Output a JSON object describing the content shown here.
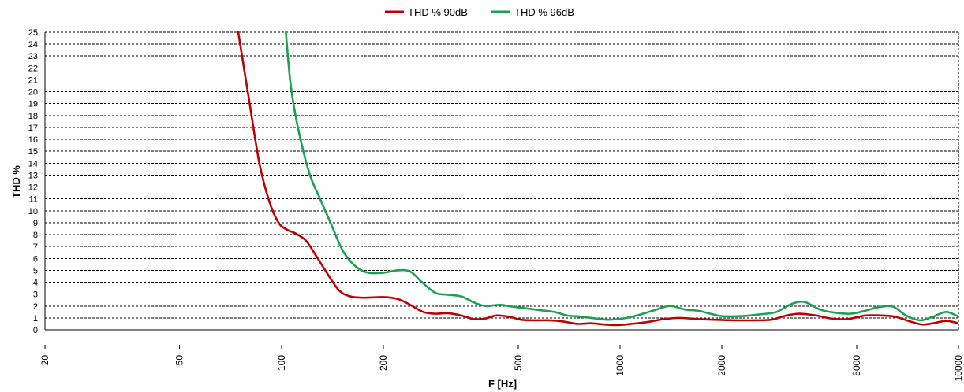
{
  "chart_data": {
    "type": "line",
    "xlabel": "F [Hz]",
    "ylabel": "THD %",
    "x_scale": "log",
    "xlim": [
      20,
      10000
    ],
    "ylim": [
      0,
      25
    ],
    "x_ticks": [
      20,
      50,
      100,
      200,
      500,
      1000,
      2000,
      5000,
      10000
    ],
    "y_ticks": [
      0,
      1,
      2,
      3,
      4,
      5,
      6,
      7,
      8,
      9,
      10,
      11,
      12,
      13,
      14,
      15,
      16,
      17,
      18,
      19,
      20,
      21,
      22,
      23,
      24,
      25
    ],
    "grid": "horizontal-dashed",
    "legend_position": "top-center",
    "series": [
      {
        "name": "THD % 90dB",
        "color": "#c00000",
        "points": [
          [
            74.5,
            25
          ],
          [
            80,
            19.5
          ],
          [
            86,
            14
          ],
          [
            92,
            10.8
          ],
          [
            98,
            9.0
          ],
          [
            104,
            8.4
          ],
          [
            110,
            8.1
          ],
          [
            118,
            7.5
          ],
          [
            126,
            6.3
          ],
          [
            136,
            4.8
          ],
          [
            148,
            3.3
          ],
          [
            160,
            2.8
          ],
          [
            175,
            2.7
          ],
          [
            200,
            2.75
          ],
          [
            220,
            2.6
          ],
          [
            240,
            2.1
          ],
          [
            262,
            1.5
          ],
          [
            285,
            1.35
          ],
          [
            310,
            1.4
          ],
          [
            340,
            1.2
          ],
          [
            370,
            0.9
          ],
          [
            400,
            0.95
          ],
          [
            430,
            1.2
          ],
          [
            470,
            1.1
          ],
          [
            510,
            0.85
          ],
          [
            560,
            0.8
          ],
          [
            620,
            0.8
          ],
          [
            680,
            0.7
          ],
          [
            750,
            0.5
          ],
          [
            820,
            0.55
          ],
          [
            900,
            0.45
          ],
          [
            980,
            0.4
          ],
          [
            1080,
            0.5
          ],
          [
            1200,
            0.65
          ],
          [
            1350,
            0.9
          ],
          [
            1500,
            1.0
          ],
          [
            1700,
            0.9
          ],
          [
            1900,
            0.85
          ],
          [
            2200,
            0.8
          ],
          [
            2500,
            0.8
          ],
          [
            2800,
            0.85
          ],
          [
            3100,
            1.2
          ],
          [
            3400,
            1.35
          ],
          [
            3800,
            1.2
          ],
          [
            4200,
            0.95
          ],
          [
            4700,
            0.9
          ],
          [
            5300,
            1.2
          ],
          [
            5900,
            1.2
          ],
          [
            6500,
            1.1
          ],
          [
            7200,
            0.7
          ],
          [
            7800,
            0.45
          ],
          [
            8400,
            0.55
          ],
          [
            9200,
            0.75
          ],
          [
            10000,
            0.55
          ]
        ]
      },
      {
        "name": "THD % 96dB",
        "color": "#1aa152",
        "points": [
          [
            103,
            25
          ],
          [
            106,
            21
          ],
          [
            110,
            18
          ],
          [
            116,
            15
          ],
          [
            122,
            12.8
          ],
          [
            130,
            11
          ],
          [
            140,
            8.9
          ],
          [
            152,
            6.6
          ],
          [
            166,
            5.3
          ],
          [
            180,
            4.8
          ],
          [
            200,
            4.8
          ],
          [
            220,
            5.0
          ],
          [
            240,
            4.9
          ],
          [
            260,
            4.0
          ],
          [
            285,
            3.1
          ],
          [
            310,
            2.95
          ],
          [
            340,
            2.8
          ],
          [
            370,
            2.3
          ],
          [
            400,
            2.0
          ],
          [
            440,
            2.1
          ],
          [
            480,
            1.95
          ],
          [
            530,
            1.8
          ],
          [
            580,
            1.65
          ],
          [
            640,
            1.5
          ],
          [
            700,
            1.2
          ],
          [
            770,
            1.1
          ],
          [
            850,
            0.95
          ],
          [
            930,
            0.85
          ],
          [
            1020,
            0.95
          ],
          [
            1120,
            1.2
          ],
          [
            1250,
            1.6
          ],
          [
            1400,
            2.0
          ],
          [
            1560,
            1.7
          ],
          [
            1700,
            1.6
          ],
          [
            1850,
            1.35
          ],
          [
            2000,
            1.15
          ],
          [
            2300,
            1.15
          ],
          [
            2600,
            1.3
          ],
          [
            2900,
            1.5
          ],
          [
            3200,
            2.15
          ],
          [
            3500,
            2.35
          ],
          [
            3900,
            1.7
          ],
          [
            4300,
            1.45
          ],
          [
            4800,
            1.35
          ],
          [
            5300,
            1.6
          ],
          [
            5800,
            1.9
          ],
          [
            6400,
            1.95
          ],
          [
            7000,
            1.2
          ],
          [
            7700,
            0.8
          ],
          [
            8400,
            1.1
          ],
          [
            9200,
            1.5
          ],
          [
            10000,
            1.1
          ]
        ]
      }
    ]
  }
}
